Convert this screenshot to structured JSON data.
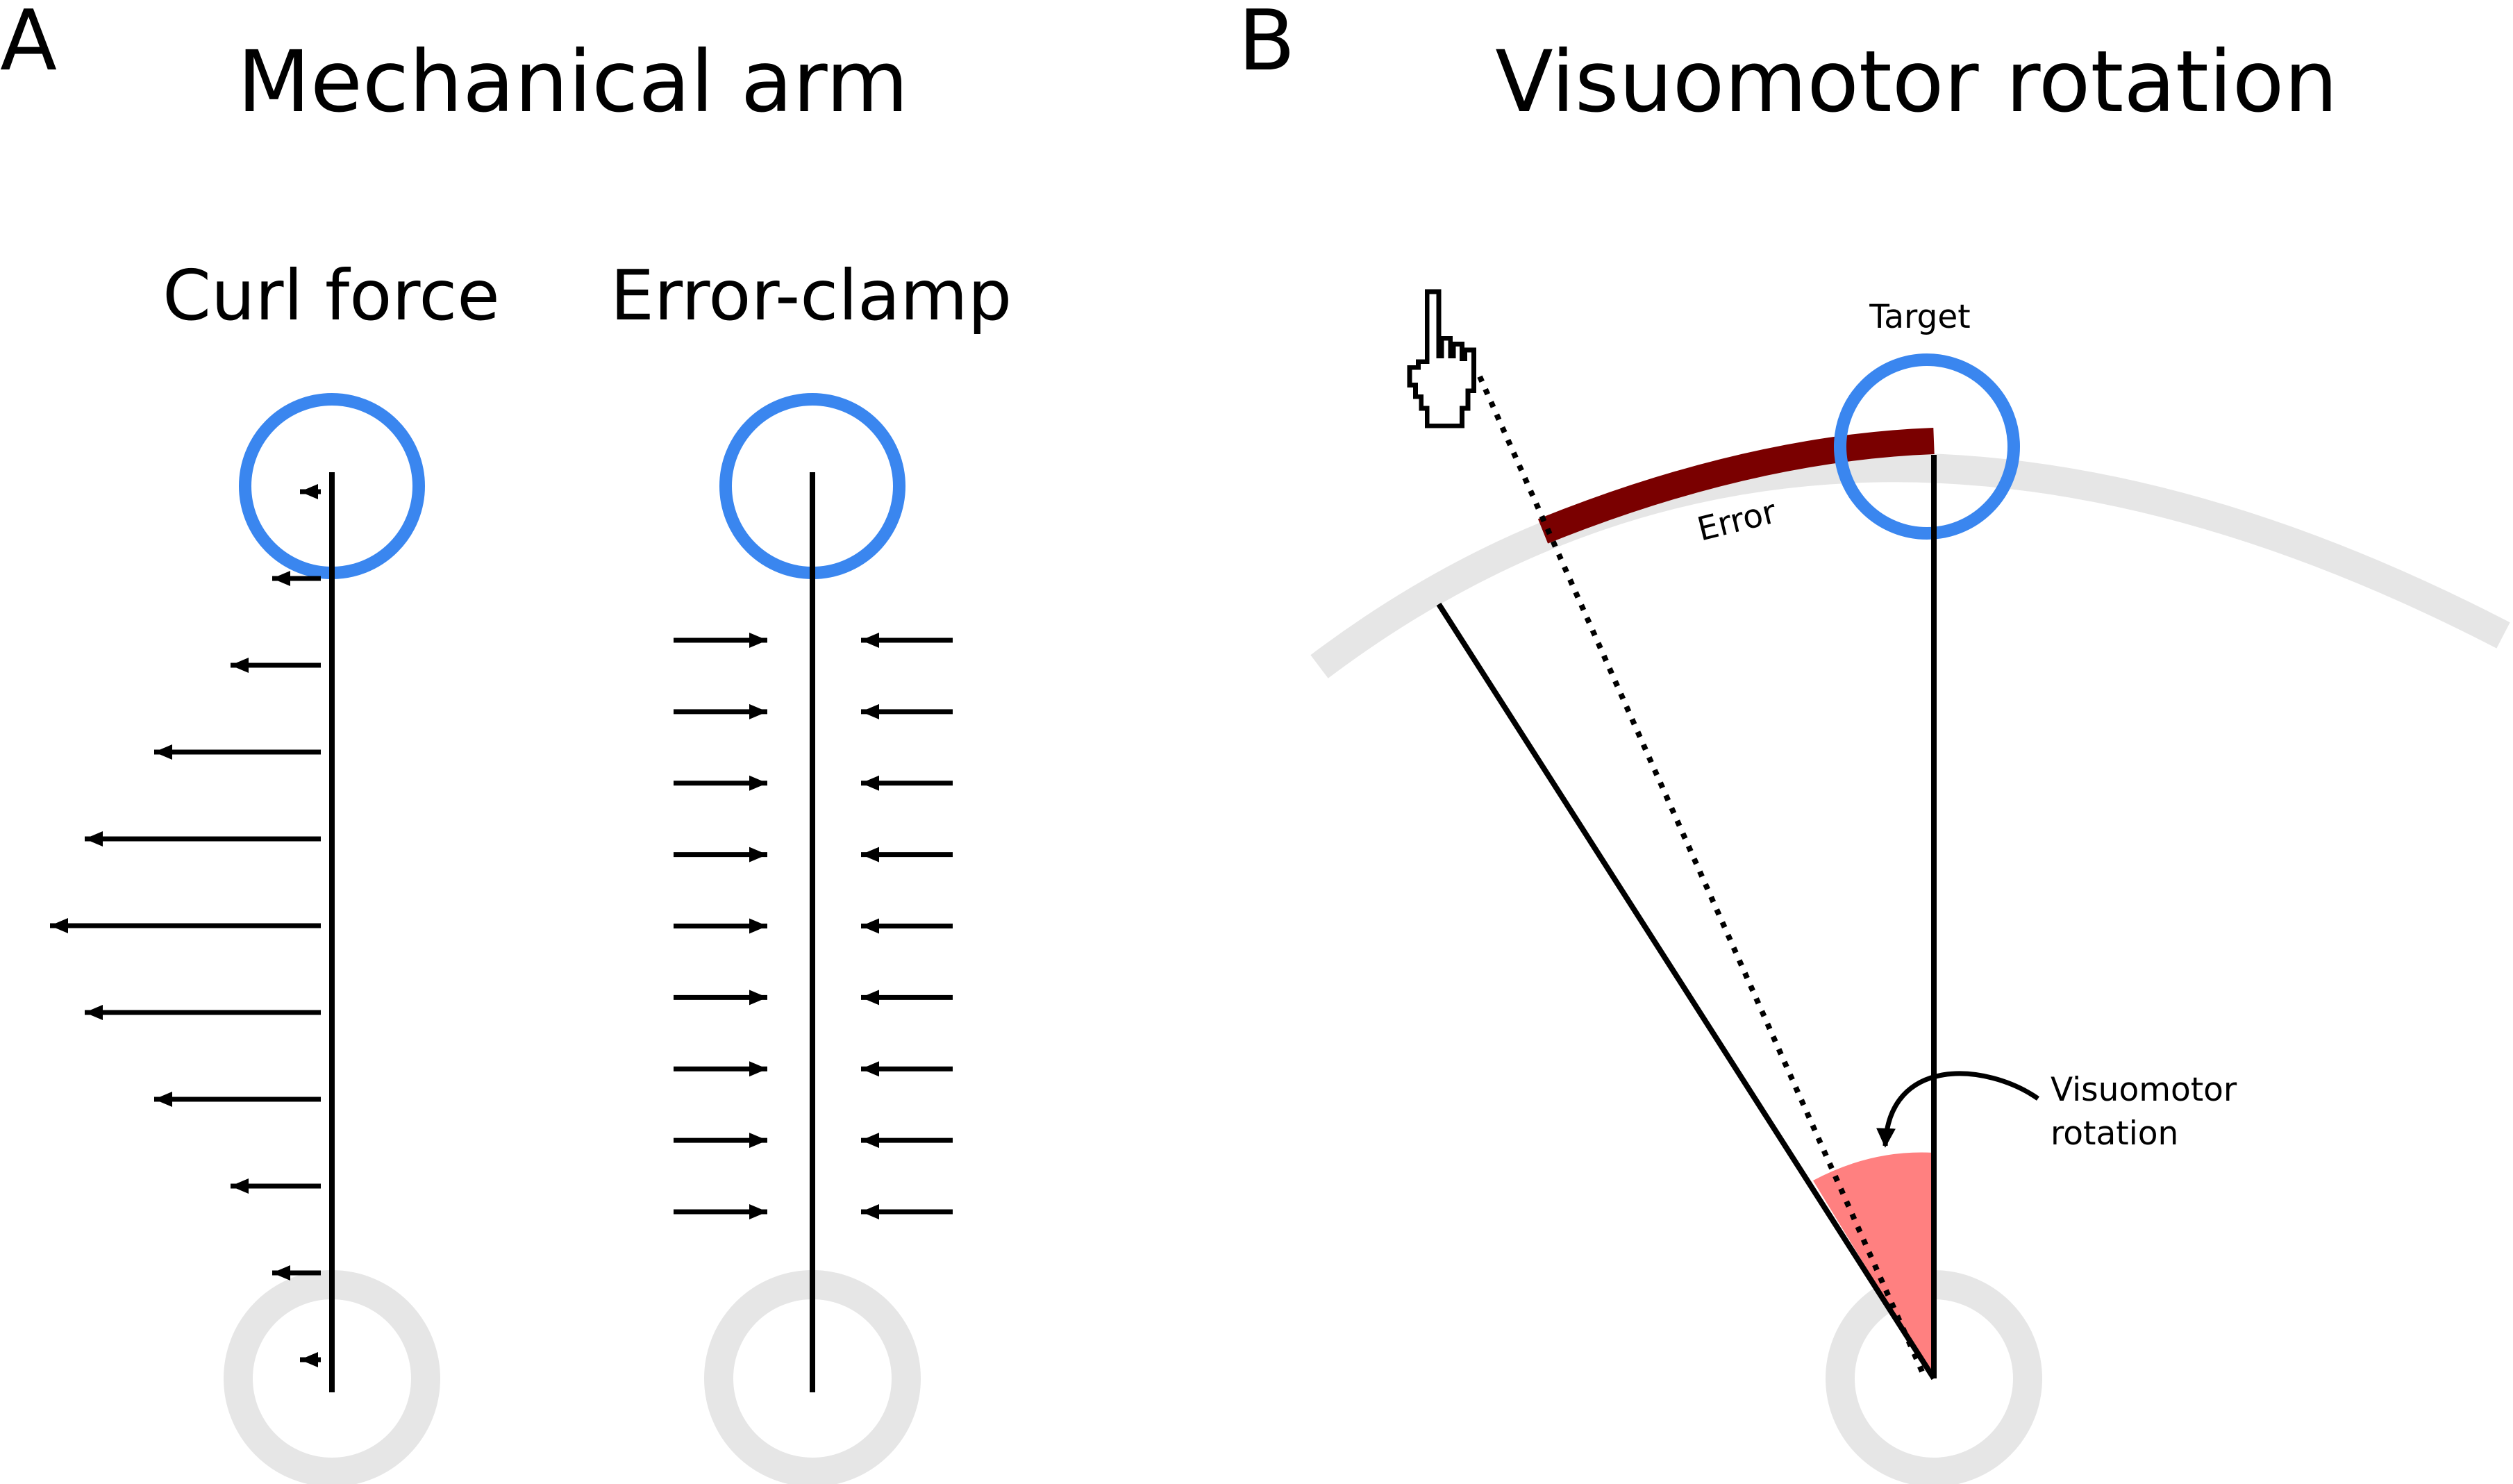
{
  "panels": {
    "a": {
      "letter": "A",
      "title": "Mechanical arm",
      "curl": {
        "title": "Curl force",
        "arrow_lengths": [
          30,
          70,
          130,
          240,
          340,
          390,
          340,
          240,
          130,
          70,
          30
        ]
      },
      "clamp": {
        "title": "Error-clamp",
        "arrow_count": 9
      }
    },
    "b": {
      "letter": "B",
      "title": "Visuomotor rotation",
      "target_label": "Target",
      "error_label": "Error",
      "rotation_label_line1": "Visuomotor",
      "rotation_label_line2": "rotation"
    }
  },
  "colors": {
    "target": "#3a86ef",
    "start": "#e6e6e6",
    "error_arc": "#7a0000",
    "rotation_wedge": "#ff8080",
    "line": "#000000"
  },
  "icons": {
    "cursor": "pointing-hand-cursor-icon"
  }
}
